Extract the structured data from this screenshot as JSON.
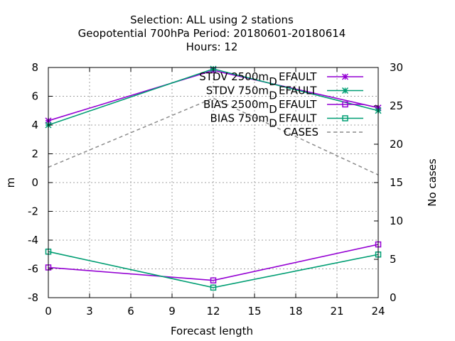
{
  "chart_data": {
    "type": "line",
    "title_lines": [
      "Selection: ALL using     2 stations",
      "Geopotential 700hPa   Period: 20180601-20180614",
      "Hours:  12"
    ],
    "xlabel": "Forecast length",
    "ylabel": "m",
    "y2label": "No cases",
    "x": [
      0,
      12,
      24
    ],
    "xlim": [
      0,
      24
    ],
    "xticks": [
      0,
      3,
      6,
      9,
      12,
      15,
      18,
      21,
      24
    ],
    "ylim": [
      -8,
      8
    ],
    "yticks": [
      -8,
      -6,
      -4,
      -2,
      0,
      2,
      4,
      6,
      8
    ],
    "y2lim": [
      0,
      30
    ],
    "y2ticks": [
      0,
      5,
      10,
      15,
      20,
      25,
      30
    ],
    "grid": true,
    "legend_position": "top-right",
    "series": [
      {
        "name": "STDV 2500m",
        "suffix": "EFAULT",
        "sub": "D",
        "axis": "y1",
        "color": "#9400d3",
        "marker": "x",
        "dash": false,
        "values": [
          4.3,
          7.8,
          5.2
        ]
      },
      {
        "name": "STDV 750m",
        "suffix": "EFAULT",
        "sub": "D",
        "axis": "y1",
        "color": "#009e73",
        "marker": "x",
        "dash": false,
        "values": [
          4.0,
          7.9,
          5.0
        ]
      },
      {
        "name": "BIAS 2500m",
        "suffix": "EFAULT",
        "sub": "D",
        "axis": "y1",
        "color": "#9400d3",
        "marker": "square",
        "dash": false,
        "values": [
          -5.9,
          -6.8,
          -4.3
        ]
      },
      {
        "name": "BIAS 750m",
        "suffix": "EFAULT",
        "sub": "D",
        "axis": "y1",
        "color": "#009e73",
        "marker": "square",
        "dash": false,
        "values": [
          -4.8,
          -7.3,
          -5.0
        ]
      },
      {
        "name": "CASES",
        "suffix": "",
        "sub": "",
        "axis": "y2",
        "color": "#8c8c8c",
        "marker": "none",
        "dash": true,
        "values": [
          17,
          26,
          16
        ]
      }
    ]
  }
}
